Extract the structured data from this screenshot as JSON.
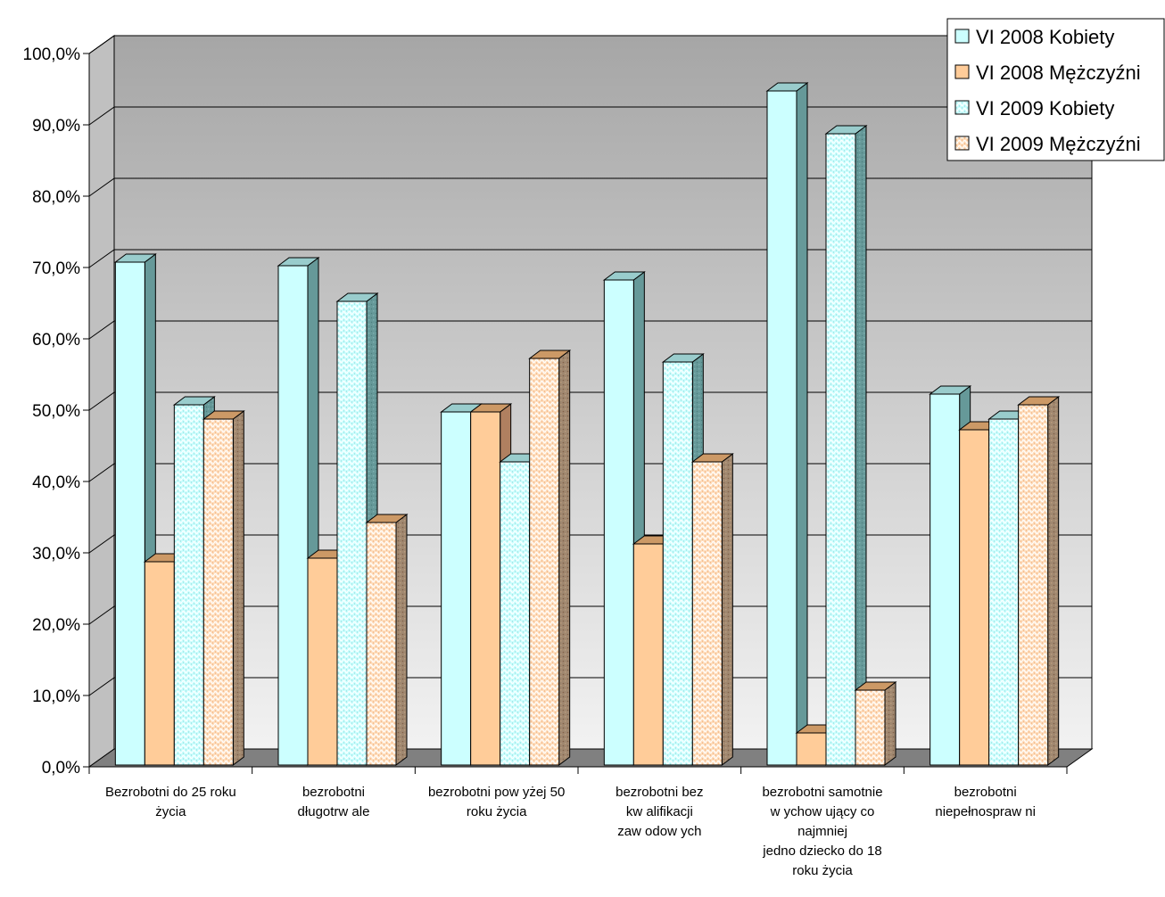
{
  "chart_data": {
    "type": "bar",
    "title": "",
    "xlabel": "",
    "ylabel": "",
    "ylim": [
      0,
      100
    ],
    "ytick_step": 10,
    "yticks": [
      "0,0%",
      "10,0%",
      "20,0%",
      "30,0%",
      "40,0%",
      "50,0%",
      "60,0%",
      "70,0%",
      "80,0%",
      "90,0%",
      "100,0%"
    ],
    "grid": true,
    "legend_position": "top-right",
    "categories": [
      [
        "Bezrobotni do 25 roku",
        "życia"
      ],
      [
        "bezrobotni",
        "długotrw ale"
      ],
      [
        "bezrobotni pow yżej 50",
        "roku życia"
      ],
      [
        "bezrobotni bez",
        "kw alifikacji",
        "zaw odow ych"
      ],
      [
        "bezrobotni samotnie",
        "w ychow ujący co",
        "najmniej",
        "jedno dziecko do 18",
        "roku życia"
      ],
      [
        "bezrobotni",
        "niepełnospraw ni"
      ]
    ],
    "series": [
      {
        "name": "VI 2008 Kobiety",
        "values": [
          71.0,
          70.5,
          50.0,
          68.5,
          95.0,
          52.5
        ],
        "color": "#ccffff",
        "side": "#669999",
        "top": "#99cccc",
        "pattern": false
      },
      {
        "name": "VI 2008 Mężczyźni",
        "values": [
          29.0,
          29.5,
          50.0,
          31.5,
          5.0,
          47.5
        ],
        "color": "#ffcc99",
        "side": "#b08060",
        "top": "#cc9966",
        "pattern": false
      },
      {
        "name": "VI 2009 Kobiety",
        "values": [
          51.0,
          65.5,
          43.0,
          57.0,
          89.0,
          49.0
        ],
        "color": "#ccffff",
        "side": "#669999",
        "top": "#99cccc",
        "pattern": true
      },
      {
        "name": "VI 2009 Mężczyźni",
        "values": [
          49.0,
          34.5,
          57.5,
          43.0,
          11.0,
          51.0
        ],
        "color": "#ffcc99",
        "side": "#a08870",
        "top": "#cc9966",
        "pattern": true
      }
    ]
  },
  "colors": {
    "wall_top": "#a6a6a6",
    "wall_bottom": "#f2f2f2",
    "floor": "#808080",
    "side_wall": "#c0c0c0"
  }
}
